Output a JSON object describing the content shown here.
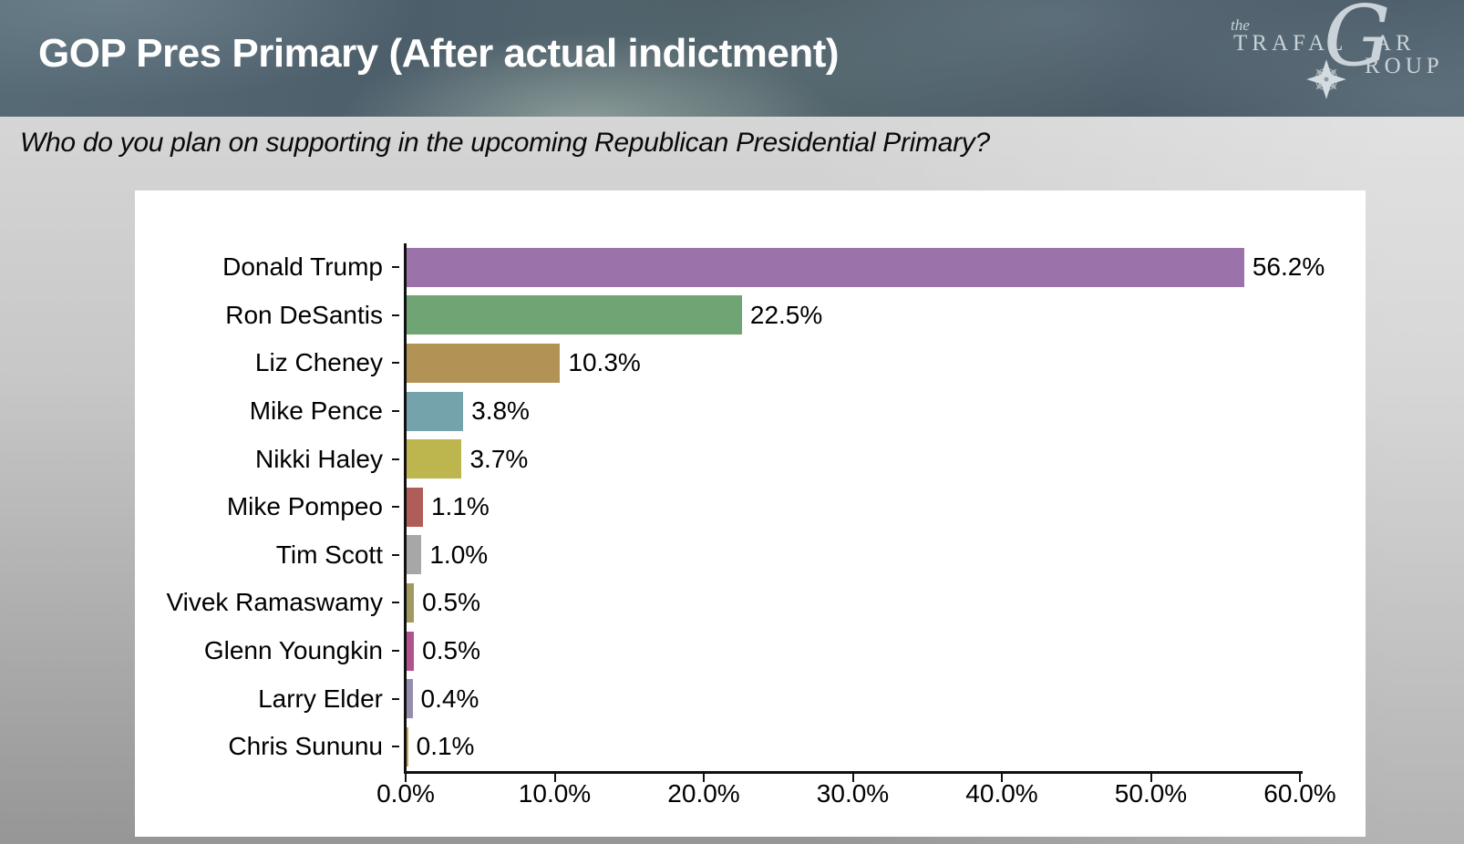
{
  "header": {
    "title": "GOP Pres Primary (After actual indictment)",
    "logo": {
      "word_the": "the",
      "word_trafal": "TRAFAL",
      "word_g": "G",
      "word_ar": "AR",
      "word_roup": "ROUP",
      "color": "#c9d3d9"
    }
  },
  "question": "Who do you plan on supporting in the upcoming Republican Presidential Primary?",
  "chart_data": {
    "type": "bar",
    "orientation": "horizontal",
    "title": "",
    "xlabel": "",
    "ylabel": "",
    "categories": [
      "Donald Trump",
      "Ron DeSantis",
      "Liz Cheney",
      "Mike Pence",
      "Nikki Haley",
      "Mike Pompeo",
      "Tim Scott",
      "Vivek Ramaswamy",
      "Glenn Youngkin",
      "Larry Elder",
      "Chris Sununu"
    ],
    "values": [
      56.2,
      22.5,
      10.3,
      3.8,
      3.7,
      1.1,
      1.0,
      0.5,
      0.5,
      0.4,
      0.1
    ],
    "value_labels": [
      "56.2%",
      "22.5%",
      "10.3%",
      "3.8%",
      "3.7%",
      "1.1%",
      "1.0%",
      "0.5%",
      "0.5%",
      "0.4%",
      "0.1%"
    ],
    "bar_colors": [
      "#9b72aa",
      "#6fa474",
      "#b39355",
      "#74a3ab",
      "#bdb64f",
      "#b05c58",
      "#a7a7a7",
      "#a09a60",
      "#b1548e",
      "#968cad",
      "#c3a45f"
    ],
    "xlim": [
      0,
      60
    ],
    "x_tick_labels": [
      "0.0%",
      "10.0%",
      "20.0%",
      "30.0%",
      "40.0%",
      "50.0%",
      "60.0%"
    ],
    "grid": false,
    "legend": "none",
    "plot_background": "#ffffff"
  }
}
